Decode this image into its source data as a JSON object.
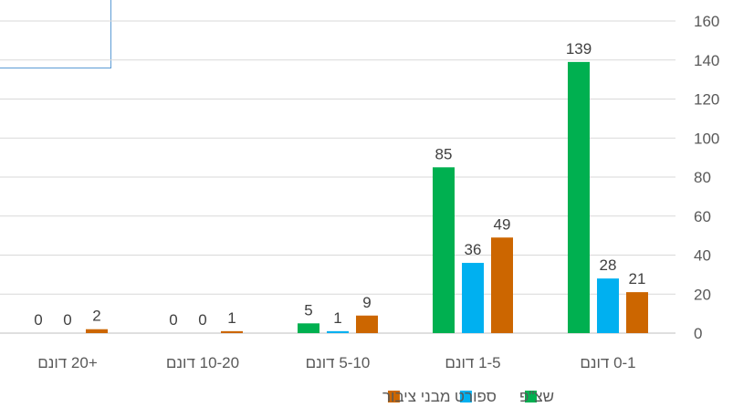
{
  "chart_data": {
    "type": "bar",
    "categories": [
      "0-1 דונם",
      "1-5 דונם",
      "5-10 דונם",
      "10-20 דונם",
      "+20 דונם"
    ],
    "series": [
      {
        "name": "שצ\"פ",
        "values": [
          139,
          85,
          5,
          0,
          0
        ],
        "color": "#00b050"
      },
      {
        "name": "ספורט",
        "values": [
          28,
          36,
          1,
          0,
          0
        ],
        "color": "#00b0f0"
      },
      {
        "name": "מבני ציבור",
        "values": [
          21,
          49,
          9,
          1,
          2
        ],
        "color": "#cc6600"
      }
    ],
    "ylim": [
      0,
      160
    ],
    "yticks": [
      0,
      20,
      40,
      60,
      80,
      100,
      120,
      140,
      160
    ],
    "y_axis_side": "right",
    "category_order": "right-to-left",
    "grid": true,
    "legend_position": "bottom",
    "title": "",
    "xlabel": "",
    "ylabel": ""
  }
}
